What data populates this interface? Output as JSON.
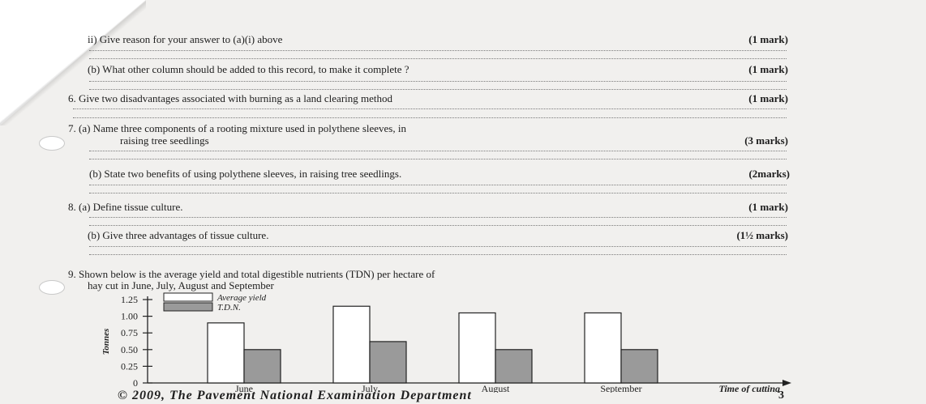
{
  "questions": {
    "q5aii": {
      "text": "ii) Give reason for your answer to (a)(i) above",
      "marks": "(1 mark)"
    },
    "q5b": {
      "text": "(b) What other column should be added to this record, to make it complete ?",
      "marks": "(1 mark)"
    },
    "q6": {
      "text": "6. Give two disadvantages associated with burning as a land clearing method",
      "marks": "(1 mark)"
    },
    "q7a_line1": "7. (a) Name three components of a rooting mixture used in polythene sleeves, in",
    "q7a_line2": "raising tree seedlings",
    "q7a_marks": "(3 marks)",
    "q7b": {
      "text": "(b) State two benefits of using polythene sleeves, in raising tree seedlings.",
      "marks": "(2marks)"
    },
    "q8a": {
      "text": "8. (a) Define tissue culture.",
      "marks": "(1 mark)"
    },
    "q8b": {
      "text": "(b) Give three advantages of tissue culture.",
      "marks": "(1½ marks)"
    },
    "q9_line1": "9. Shown below is the average yield and total digestible nutrients (TDN) per hectare of",
    "q9_line2": "hay cut in June, July, August and September"
  },
  "chart_data": {
    "type": "bar",
    "categories": [
      "June",
      "July",
      "August",
      "September"
    ],
    "series": [
      {
        "name": "Average yield",
        "values": [
          0.9,
          1.15,
          1.05,
          1.05
        ],
        "color": "#ffffff"
      },
      {
        "name": "T.D.N.",
        "values": [
          0.5,
          0.62,
          0.5,
          0.5
        ],
        "color": "#9a9a9a"
      }
    ],
    "ylabel": "Tonnes",
    "xlabel": "Time of cutting",
    "yticks": [
      "1.25",
      "1.00",
      "0.75",
      "0.50",
      "0.25",
      "0"
    ],
    "ylim": [
      0,
      1.25
    ]
  },
  "footer": {
    "copyright": "© 2009, The Pavement National Examination Department",
    "page": "3"
  }
}
